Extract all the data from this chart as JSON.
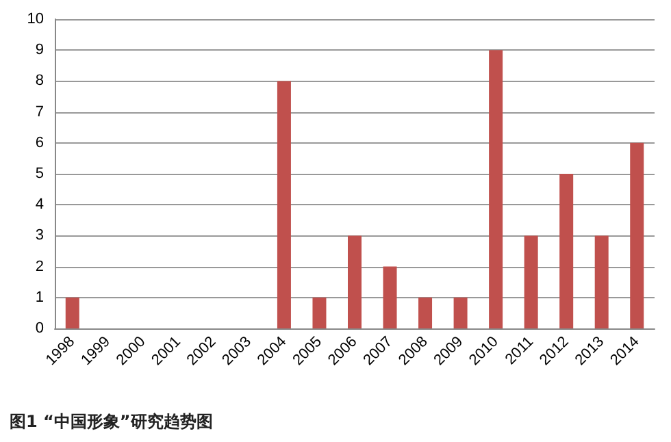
{
  "chart_data": {
    "type": "bar",
    "title": "图1 “中国形象”研究趋势图",
    "categories": [
      "1998",
      "1999",
      "2000",
      "2001",
      "2002",
      "2003",
      "2004",
      "2005",
      "2006",
      "2007",
      "2008",
      "2009",
      "2010",
      "2011",
      "2012",
      "2013",
      "2014"
    ],
    "values": [
      1,
      0,
      0,
      0,
      0,
      0,
      8,
      1,
      3,
      2,
      1,
      1,
      9,
      3,
      5,
      3,
      6
    ],
    "color": "#c0504d",
    "ylim": [
      0,
      10
    ],
    "yticks": [
      0,
      1,
      2,
      3,
      4,
      5,
      6,
      7,
      8,
      9,
      10
    ],
    "grid": "y"
  }
}
